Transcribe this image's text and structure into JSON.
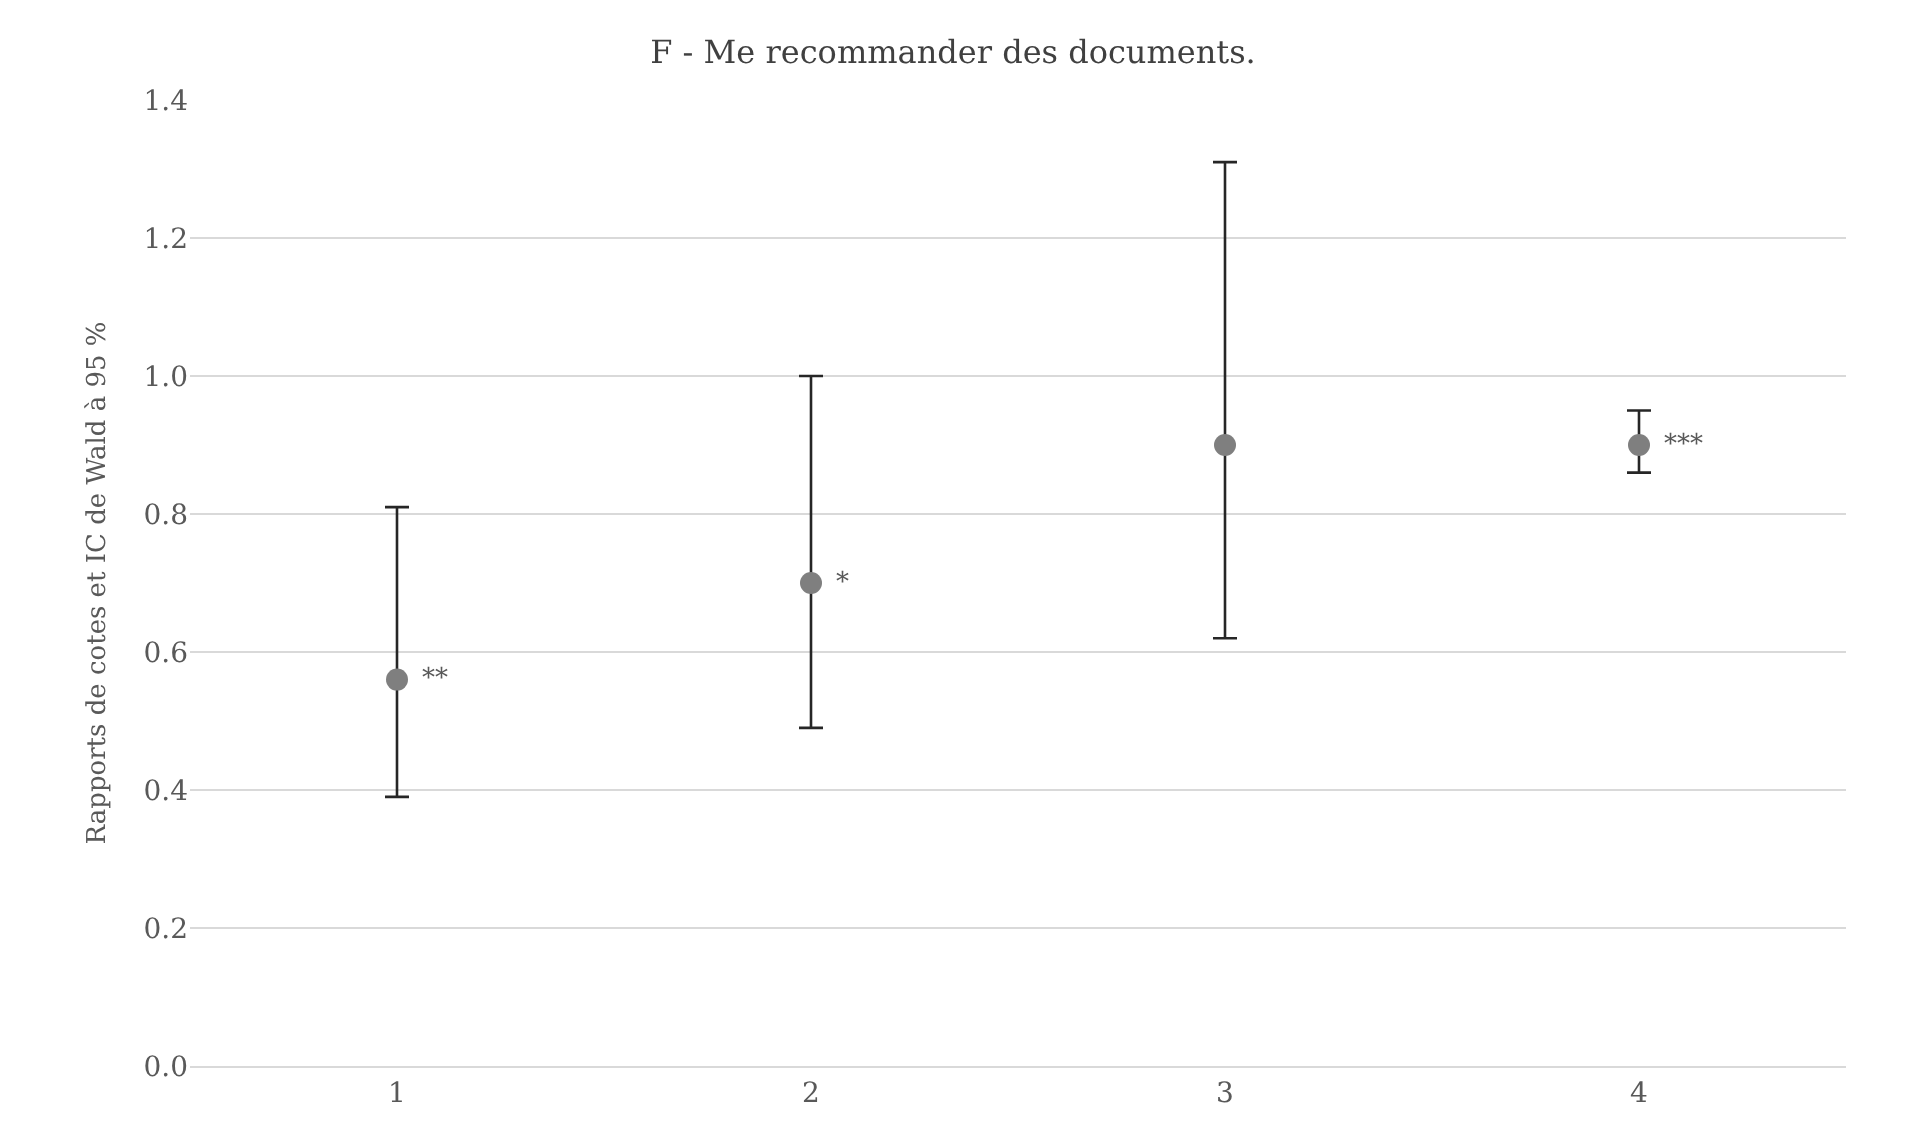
{
  "chart_data": {
    "type": "scatter",
    "title": "F - Me recommander des documents.",
    "ylabel": "Rapports de cotes et IC de Wald à 95 %",
    "categories": [
      "1",
      "2",
      "3",
      "4"
    ],
    "series": [
      {
        "color": "#7f7f7f",
        "values": [
          0.56,
          0.7,
          0.9,
          0.9
        ],
        "errors": [
          [
            0.39,
            0.81
          ],
          [
            0.49,
            1.0
          ],
          [
            0.62,
            1.31
          ],
          [
            0.86,
            0.95
          ]
        ]
      }
    ],
    "ylim": [
      0,
      1.4
    ],
    "yticks": [
      {
        "value": 0,
        "label": "0.0"
      },
      {
        "value": 0.2,
        "label": "0.2"
      },
      {
        "value": 0.4,
        "label": "0.4"
      },
      {
        "value": 0.6,
        "label": "0.6"
      },
      {
        "value": 0.8,
        "label": "0.8"
      },
      {
        "value": 1.0,
        "label": "1.0"
      },
      {
        "value": 1.2,
        "label": "1.2"
      },
      {
        "value": 1.4,
        "label": "1.4"
      }
    ],
    "grid": "y",
    "marker": "circle",
    "annotations": [
      {
        "text": "**",
        "x": "1",
        "y": 0.56
      },
      {
        "text": "*",
        "x": "2",
        "y": 0.7
      },
      {
        "text": "***",
        "x": "4",
        "y": 0.9
      }
    ]
  }
}
